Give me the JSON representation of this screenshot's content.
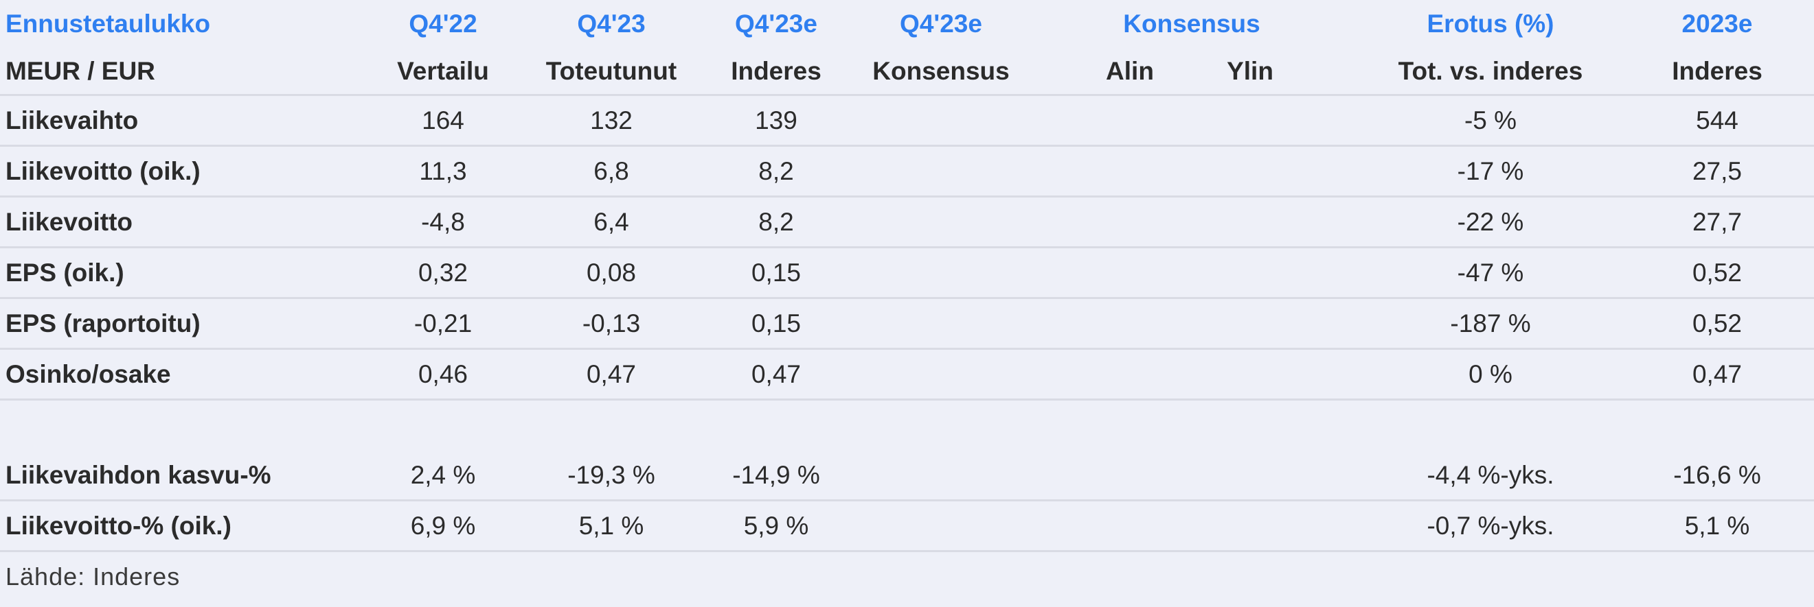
{
  "table": {
    "header1": {
      "title": "Ennustetaulukko",
      "col1": "Q4'22",
      "col2": "Q4'23",
      "col3": "Q4'23e",
      "col4": "Q4'23e",
      "consensus": "Konsensus",
      "col7": "Erotus (%)",
      "col8": "2023e"
    },
    "header2": {
      "unit": "MEUR / EUR",
      "col1": "Vertailu",
      "col2": "Toteutunut",
      "col3": "Inderes",
      "col4": "Konsensus",
      "col5": "Alin",
      "col6": "Ylin",
      "col7": "Tot. vs. inderes",
      "col8": "Inderes"
    },
    "rows": [
      {
        "label": "Liikevaihto",
        "v1": "164",
        "v2": "132",
        "v3": "139",
        "v4": "",
        "v5": "",
        "v6": "",
        "v7": "-5 %",
        "v8": "544"
      },
      {
        "label": "Liikevoitto (oik.)",
        "v1": "11,3",
        "v2": "6,8",
        "v3": "8,2",
        "v4": "",
        "v5": "",
        "v6": "",
        "v7": "-17 %",
        "v8": "27,5"
      },
      {
        "label": "Liikevoitto",
        "v1": "-4,8",
        "v2": "6,4",
        "v3": "8,2",
        "v4": "",
        "v5": "",
        "v6": "",
        "v7": "-22 %",
        "v8": "27,7"
      },
      {
        "label": "EPS (oik.)",
        "v1": "0,32",
        "v2": "0,08",
        "v3": "0,15",
        "v4": "",
        "v5": "",
        "v6": "",
        "v7": "-47 %",
        "v8": "0,52"
      },
      {
        "label": "EPS (raportoitu)",
        "v1": "-0,21",
        "v2": "-0,13",
        "v3": "0,15",
        "v4": "",
        "v5": "",
        "v6": "",
        "v7": "-187 %",
        "v8": "0,52"
      },
      {
        "label": "Osinko/osake",
        "v1": "0,46",
        "v2": "0,47",
        "v3": "0,47",
        "v4": "",
        "v5": "",
        "v6": "",
        "v7": "0 %",
        "v8": "0,47"
      }
    ],
    "rows2": [
      {
        "label": "Liikevaihdon kasvu-%",
        "v1": "2,4 %",
        "v2": "-19,3 %",
        "v3": "-14,9 %",
        "v4": "",
        "v5": "",
        "v6": "",
        "v7": "-4,4 %-yks.",
        "v8": "-16,6 %"
      },
      {
        "label": "Liikevoitto-% (oik.)",
        "v1": "6,9 %",
        "v2": "5,1 %",
        "v3": "5,9 %",
        "v4": "",
        "v5": "",
        "v6": "",
        "v7": "-0,7 %-yks.",
        "v8": "5,1 %"
      }
    ],
    "source": "Lähde: Inderes"
  }
}
